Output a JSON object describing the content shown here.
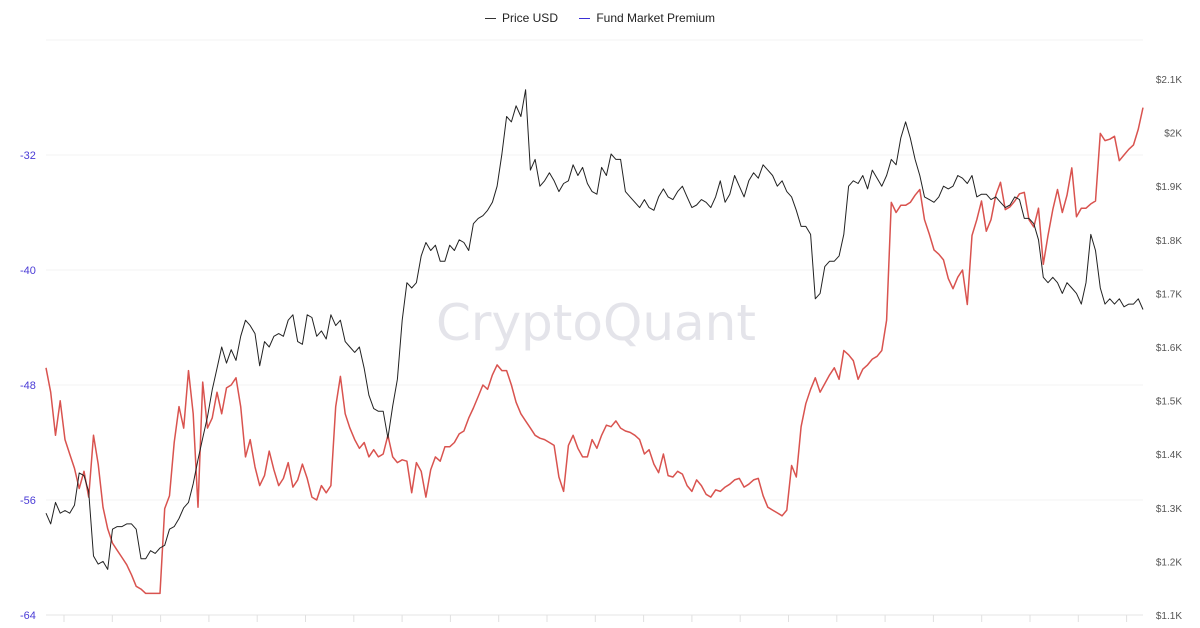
{
  "legend": {
    "items": [
      {
        "label": "Price USD",
        "color": "#333333"
      },
      {
        "label": "Fund Market Premium",
        "color": "#3a2fd6"
      }
    ]
  },
  "watermark": "CryptoQuant",
  "axes": {
    "left": {
      "ticks": [
        "-32",
        "-40",
        "-48",
        "-56",
        "-64"
      ],
      "color": "#4a3bd6"
    },
    "right": {
      "ticks": [
        "$2.1K",
        "$2K",
        "$1.9K",
        "$1.8K",
        "$1.7K",
        "$1.6K",
        "$1.5K",
        "$1.4K",
        "$1.3K",
        "$1.2K",
        "$1.1K"
      ]
    }
  },
  "chart_data": {
    "type": "line",
    "title": "",
    "legend_position": "top-center",
    "grid": true,
    "series": [
      {
        "name": "Price USD",
        "axis": "right",
        "color": "#333333",
        "ylim": [
          1100,
          2100
        ],
        "values": [
          1290,
          1270,
          1310,
          1290,
          1295,
          1290,
          1305,
          1365,
          1360,
          1330,
          1210,
          1195,
          1200,
          1185,
          1260,
          1265,
          1265,
          1270,
          1270,
          1260,
          1205,
          1205,
          1220,
          1215,
          1225,
          1230,
          1260,
          1265,
          1280,
          1300,
          1310,
          1345,
          1390,
          1430,
          1470,
          1520,
          1560,
          1600,
          1570,
          1595,
          1575,
          1620,
          1650,
          1640,
          1625,
          1565,
          1610,
          1600,
          1620,
          1625,
          1620,
          1650,
          1660,
          1610,
          1605,
          1660,
          1655,
          1620,
          1630,
          1615,
          1660,
          1640,
          1650,
          1610,
          1600,
          1590,
          1600,
          1560,
          1510,
          1485,
          1480,
          1480,
          1430,
          1490,
          1540,
          1650,
          1720,
          1710,
          1720,
          1770,
          1795,
          1780,
          1790,
          1760,
          1760,
          1790,
          1780,
          1800,
          1795,
          1780,
          1830,
          1840,
          1845,
          1855,
          1870,
          1900,
          1960,
          2030,
          2020,
          2050,
          2030,
          2080,
          1930,
          1950,
          1900,
          1910,
          1925,
          1910,
          1890,
          1905,
          1910,
          1940,
          1920,
          1935,
          1905,
          1890,
          1885,
          1935,
          1920,
          1960,
          1950,
          1950,
          1890,
          1880,
          1870,
          1860,
          1875,
          1860,
          1855,
          1880,
          1895,
          1880,
          1875,
          1890,
          1900,
          1880,
          1860,
          1865,
          1875,
          1870,
          1860,
          1880,
          1910,
          1870,
          1885,
          1920,
          1900,
          1880,
          1910,
          1925,
          1915,
          1940,
          1930,
          1920,
          1900,
          1910,
          1890,
          1880,
          1855,
          1825,
          1825,
          1810,
          1690,
          1700,
          1750,
          1760,
          1760,
          1770,
          1810,
          1900,
          1910,
          1905,
          1920,
          1895,
          1930,
          1915,
          1900,
          1920,
          1950,
          1940,
          1990,
          2020,
          1990,
          1950,
          1920,
          1880,
          1875,
          1870,
          1880,
          1900,
          1895,
          1900,
          1920,
          1915,
          1905,
          1920,
          1880,
          1885,
          1885,
          1875,
          1880,
          1870,
          1860,
          1865,
          1880,
          1875,
          1840,
          1840,
          1830,
          1800,
          1730,
          1720,
          1730,
          1720,
          1700,
          1720,
          1710,
          1700,
          1680,
          1720,
          1810,
          1780,
          1710,
          1680,
          1690,
          1680,
          1690,
          1675,
          1680,
          1680,
          1690,
          1670
        ]
      },
      {
        "name": "Fund Market Premium",
        "axis": "left",
        "color": "#d9534f",
        "ylim": [
          -64,
          -24
        ],
        "values": [
          -46.8,
          -48.5,
          -51.5,
          -49.1,
          -51.8,
          -52.8,
          -53.8,
          -55.2,
          -54.0,
          -55.8,
          -51.5,
          -53.5,
          -56.5,
          -58.0,
          -59.0,
          -59.5,
          -60.0,
          -60.5,
          -61.2,
          -62.0,
          -62.2,
          -62.5,
          -62.5,
          -62.5,
          -62.5,
          -56.6,
          -55.7,
          -52.0,
          -49.5,
          -51.0,
          -47.0,
          -50.0,
          -56.5,
          -47.8,
          -51.0,
          -50.3,
          -48.5,
          -50.0,
          -48.2,
          -48.0,
          -47.5,
          -49.5,
          -53.0,
          -51.8,
          -53.7,
          -55.0,
          -54.3,
          -52.6,
          -53.9,
          -55.0,
          -54.5,
          -53.4,
          -55.1,
          -54.6,
          -53.5,
          -54.5,
          -55.8,
          -56.0,
          -55.0,
          -55.5,
          -55.0,
          -49.5,
          -47.4,
          -50.0,
          -51.0,
          -51.8,
          -52.4,
          -52.0,
          -53.0,
          -52.5,
          -53.0,
          -52.8,
          -51.5,
          -53.0,
          -53.4,
          -53.2,
          -53.3,
          -55.5,
          -53.4,
          -54.0,
          -55.8,
          -53.9,
          -53.0,
          -53.3,
          -52.3,
          -52.3,
          -52.0,
          -51.4,
          -51.2,
          -50.3,
          -49.6,
          -48.8,
          -48.0,
          -48.3,
          -47.3,
          -46.6,
          -47.0,
          -47.0,
          -48.0,
          -49.2,
          -50.0,
          -50.5,
          -51.0,
          -51.5,
          -51.7,
          -51.8,
          -52.0,
          -52.2,
          -54.4,
          -55.4,
          -52.2,
          -51.5,
          -52.4,
          -53.0,
          -53.0,
          -51.8,
          -52.4,
          -51.5,
          -50.8,
          -50.9,
          -50.5,
          -51.0,
          -51.2,
          -51.3,
          -51.5,
          -51.8,
          -52.8,
          -52.5,
          -53.5,
          -54.1,
          -52.8,
          -54.3,
          -54.4,
          -54.0,
          -54.2,
          -55.0,
          -55.4,
          -54.6,
          -55.0,
          -55.6,
          -55.8,
          -55.3,
          -55.4,
          -55.1,
          -54.9,
          -54.6,
          -54.5,
          -55.1,
          -54.9,
          -54.6,
          -54.5,
          -55.7,
          -56.5,
          -56.7,
          -56.9,
          -57.1,
          -56.7,
          -53.6,
          -54.4,
          -50.9,
          -49.3,
          -48.3,
          -47.5,
          -48.5,
          -47.9,
          -47.3,
          -46.8,
          -47.6,
          -45.6,
          -45.9,
          -46.3,
          -47.6,
          -46.9,
          -46.6,
          -46.2,
          -46.0,
          -45.6,
          -43.5,
          -35.3,
          -36.0,
          -35.5,
          -35.5,
          -35.3,
          -34.8,
          -34.4,
          -36.5,
          -37.5,
          -38.6,
          -38.9,
          -39.3,
          -40.6,
          -41.3,
          -40.5,
          -40.0,
          -42.4,
          -37.6,
          -36.5,
          -35.2,
          -37.3,
          -36.5,
          -34.8,
          -33.9,
          -35.8,
          -35.6,
          -35.2,
          -34.7,
          -34.6,
          -36.5,
          -37.0,
          -35.7,
          -39.6,
          -37.6,
          -35.8,
          -34.4,
          -36.0,
          -34.8,
          -32.9,
          -36.3,
          -35.7,
          -35.7,
          -35.4,
          -35.2,
          -30.5,
          -31.0,
          -30.9,
          -30.7,
          -32.4,
          -32.0,
          -31.6,
          -31.3,
          -30.2,
          -28.7
        ]
      }
    ],
    "left_axis": {
      "label": "",
      "ticks": [
        -32,
        -40,
        -48,
        -56,
        -64
      ],
      "ylim": [
        -64,
        -24
      ]
    },
    "right_axis": {
      "label": "",
      "ticks": [
        2100,
        2000,
        1900,
        1800,
        1700,
        1600,
        1500,
        1400,
        1300,
        1200,
        1100
      ],
      "ylim": [
        1100,
        2100
      ]
    },
    "xlabel": "",
    "ylabel": ""
  }
}
